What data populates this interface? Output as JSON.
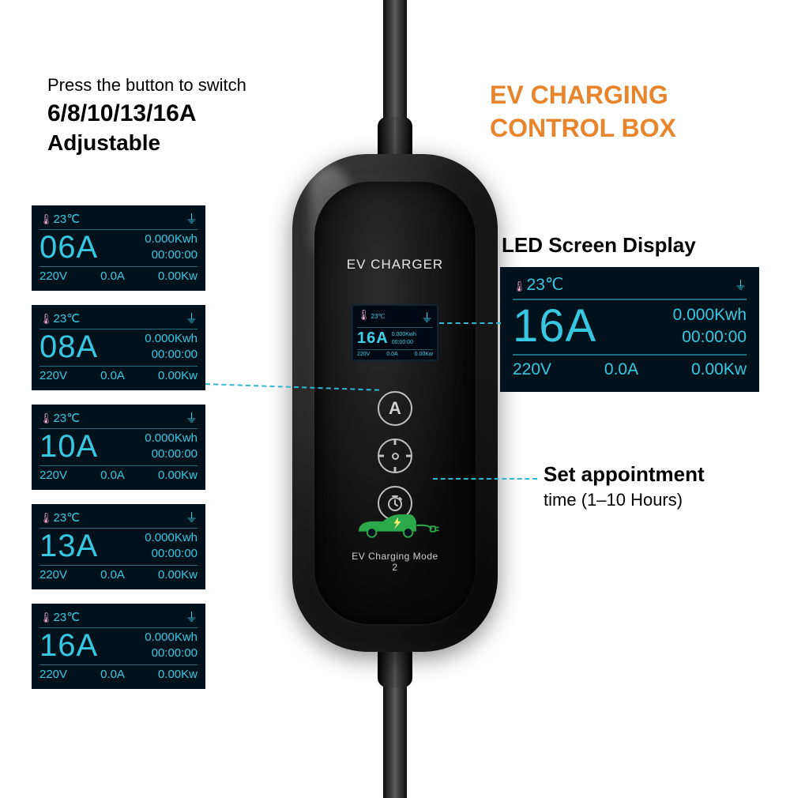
{
  "title_line1": "EV CHARGING",
  "title_line2": "CONTROL BOX",
  "title_color": "#e8852c",
  "instructions": {
    "line1": "Press the button to switch",
    "line2": "6/8/10/13/16A",
    "line3": "Adjustable"
  },
  "charger": {
    "label": "EV CHARGER",
    "mode_text": "EV Charging Mode 2",
    "car_color": "#2aa84a",
    "mini_screen": {
      "temp": "23℃",
      "amp": "16A",
      "kwh": "0.000Kwh",
      "time": "00:00:00",
      "volt": "220V",
      "current": "0.0A",
      "power": "0.00Kw"
    }
  },
  "led": {
    "label": "LED Screen Display",
    "bg_color": "#01121c",
    "text_color": "#37c8df",
    "line_color": "#206d83"
  },
  "big_panel": {
    "temp": "23℃",
    "amp": "16A",
    "kwh": "0.000Kwh",
    "time": "00:00:00",
    "volt": "220V",
    "current": "0.0A",
    "power": "0.00Kw"
  },
  "appointment": {
    "line1": "Set appointment",
    "line2_a": "time ",
    "line2_b": "(1–10 Hours)"
  },
  "panels": [
    {
      "temp": "23℃",
      "amp": "06A",
      "kwh": "0.000Kwh",
      "time": "00:00:00",
      "volt": "220V",
      "current": "0.0A",
      "power": "0.00Kw"
    },
    {
      "temp": "23℃",
      "amp": "08A",
      "kwh": "0.000Kwh",
      "time": "00:00:00",
      "volt": "220V",
      "current": "0.0A",
      "power": "0.00Kw"
    },
    {
      "temp": "23℃",
      "amp": "10A",
      "kwh": "0.000Kwh",
      "time": "00:00:00",
      "volt": "220V",
      "current": "0.0A",
      "power": "0.00Kw"
    },
    {
      "temp": "23℃",
      "amp": "13A",
      "kwh": "0.000Kwh",
      "time": "00:00:00",
      "volt": "220V",
      "current": "0.0A",
      "power": "0.00Kw"
    },
    {
      "temp": "23℃",
      "amp": "16A",
      "kwh": "0.000Kwh",
      "time": "00:00:00",
      "volt": "220V",
      "current": "0.0A",
      "power": "0.00Kw"
    }
  ]
}
